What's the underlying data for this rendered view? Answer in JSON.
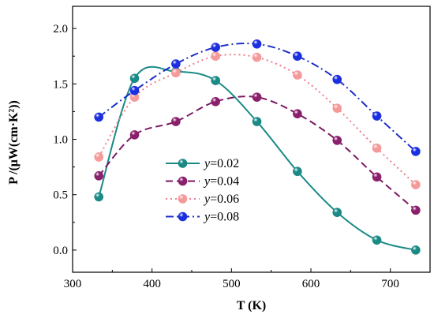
{
  "chart_data": {
    "type": "line",
    "xlabel": "T (K)",
    "ylabel": "P /(μW(cm·K²))",
    "xlim": [
      300,
      750
    ],
    "ylim": [
      -0.2,
      2.2
    ],
    "xticks": [
      300,
      400,
      500,
      600,
      700
    ],
    "yticks": [
      0.0,
      0.5,
      1.0,
      1.5,
      2.0
    ],
    "ytick_labels": [
      "0.0",
      "0.5",
      "1.0",
      "1.5",
      "2.0"
    ],
    "x": [
      333,
      378,
      430,
      480,
      532,
      583,
      633,
      683,
      732
    ],
    "legend_position": "center-left",
    "series": [
      {
        "name": "y=0.02",
        "symbol": "y",
        "value_text": "=0.02",
        "values": [
          0.48,
          1.55,
          1.61,
          1.53,
          1.16,
          0.71,
          0.34,
          0.09,
          0.0
        ],
        "color": "#1a8a86",
        "dash": "solid",
        "marker": "#1a8a86"
      },
      {
        "name": "y=0.04",
        "symbol": "y",
        "value_text": "=0.04",
        "values": [
          0.67,
          1.04,
          1.16,
          1.34,
          1.38,
          1.23,
          0.99,
          0.66,
          0.36
        ],
        "color": "#7b1860",
        "dash": "dash",
        "marker": "#8a1f6c"
      },
      {
        "name": "y=0.06",
        "symbol": "y",
        "value_text": "=0.06",
        "values": [
          0.84,
          1.38,
          1.6,
          1.75,
          1.74,
          1.58,
          1.28,
          0.92,
          0.59
        ],
        "color": "#f07c8a",
        "dash": "dot",
        "marker": "#f59a9a"
      },
      {
        "name": "y=0.08",
        "symbol": "y",
        "value_text": "=0.08",
        "values": [
          1.2,
          1.44,
          1.68,
          1.83,
          1.86,
          1.75,
          1.54,
          1.21,
          0.89
        ],
        "color": "#1c2fc7",
        "dash": "dashdot",
        "marker": "#1c2fe0"
      }
    ]
  }
}
